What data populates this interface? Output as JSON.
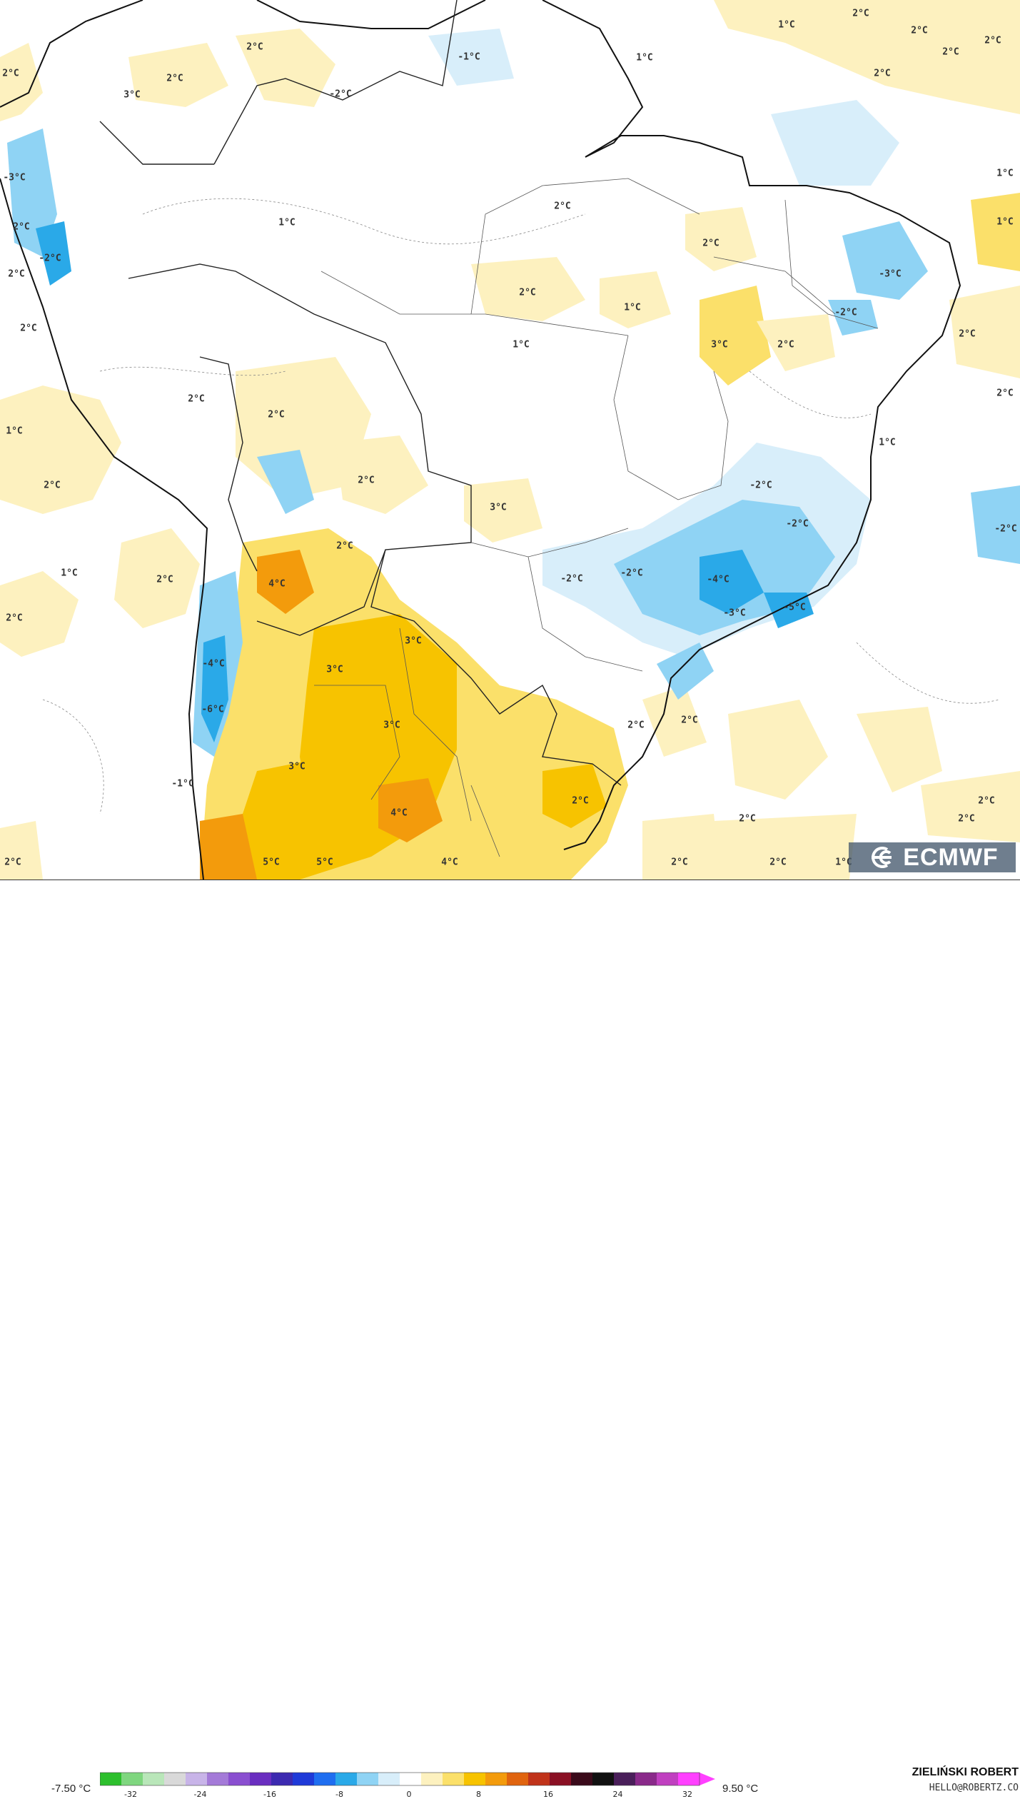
{
  "map": {
    "unit": "°C",
    "labels": [
      {
        "text": "1°C"
      },
      {
        "text": "2°C"
      },
      {
        "text": "2°C"
      },
      {
        "text": "2°C"
      },
      {
        "text": "2°C"
      },
      {
        "text": "2°C"
      },
      {
        "text": "2°C"
      },
      {
        "text": "2°C"
      },
      {
        "text": "-1°C"
      },
      {
        "text": "1°C"
      },
      {
        "text": "2°C"
      },
      {
        "text": "3°C"
      },
      {
        "text": "-2°C"
      },
      {
        "text": "-3°C"
      },
      {
        "text": "1°C"
      },
      {
        "text": "1°C"
      },
      {
        "text": "2°C"
      },
      {
        "text": "2°C"
      },
      {
        "text": "1°C"
      },
      {
        "text": "2°C"
      },
      {
        "text": "3°C"
      },
      {
        "text": "2°C"
      },
      {
        "text": "-2°C"
      },
      {
        "text": "2°C"
      },
      {
        "text": "1°C"
      },
      {
        "text": "1°C"
      },
      {
        "text": "2°C"
      },
      {
        "text": "2°C"
      },
      {
        "text": "2°C"
      },
      {
        "text": "2°C"
      },
      {
        "text": "-2°C"
      },
      {
        "text": "-2°C"
      },
      {
        "text": "-2°C"
      },
      {
        "text": "-2°C"
      },
      {
        "text": "-2°C"
      },
      {
        "text": "-4°C"
      },
      {
        "text": "-3°C"
      },
      {
        "text": "-5°C"
      },
      {
        "text": "2°C"
      },
      {
        "text": "1°C"
      },
      {
        "text": "2°C"
      },
      {
        "text": "1°C"
      },
      {
        "text": "2°C"
      },
      {
        "text": "2°C"
      },
      {
        "text": "3°C"
      },
      {
        "text": "2°C"
      },
      {
        "text": "2°C"
      },
      {
        "text": "2°C"
      },
      {
        "text": "2°C"
      },
      {
        "text": "1°C"
      },
      {
        "text": "2°C"
      },
      {
        "text": "2°C"
      },
      {
        "text": "2°C"
      },
      {
        "text": "2°C"
      },
      {
        "text": "2°C"
      },
      {
        "text": "2°C"
      },
      {
        "text": "1°C"
      },
      {
        "text": "-2°C"
      },
      {
        "text": "4°C"
      },
      {
        "text": "2°C"
      },
      {
        "text": "3°C"
      },
      {
        "text": "-4°C"
      },
      {
        "text": "3°C"
      },
      {
        "text": "-6°C"
      },
      {
        "text": "3°C"
      },
      {
        "text": "3°C"
      },
      {
        "text": "-1°C"
      },
      {
        "text": "4°C"
      },
      {
        "text": "5°C"
      },
      {
        "text": "5°C"
      },
      {
        "text": "4°C"
      },
      {
        "text": "2°C"
      },
      {
        "text": "-3°C"
      }
    ]
  },
  "colorbar": {
    "min_label": "-7.50 °C",
    "max_label": "9.50 °C",
    "ticks": [
      "-32",
      "-24",
      "-16",
      "-8",
      "0",
      "8",
      "16",
      "24",
      "32"
    ],
    "colors": {
      "cold_deep": "#2aa9e8",
      "cold": "#8fd3f4",
      "cool": "#d8eefa",
      "neutral": "#ffffff",
      "warm_light": "#fdf1bf",
      "warm": "#fbe06a",
      "hot": "#f7c300",
      "hotter": "#f39b0c"
    }
  },
  "logo": {
    "text": "ECMWF",
    "icon": "ecmwf-logo-icon"
  },
  "author": {
    "name": "ZIELIŃSKI ROBERT",
    "email": "HELLO@ROBERTZ.CO"
  }
}
